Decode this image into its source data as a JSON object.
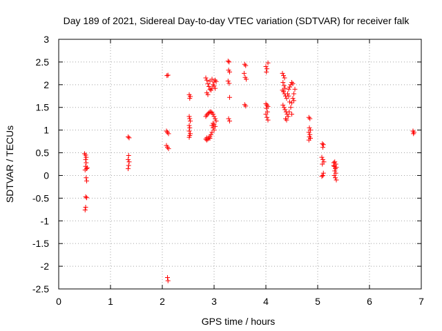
{
  "chart_data": {
    "type": "scatter",
    "title": "Day 189 of 2021, Sidereal Day-to-day VTEC variation (SDTVAR) for receiver falk",
    "xlabel": "GPS time / hours",
    "ylabel": "SDTVAR / TECUs",
    "xlim": [
      0,
      7
    ],
    "ylim": [
      -2.5,
      3
    ],
    "xticks": [
      "0",
      "1",
      "2",
      "3",
      "4",
      "5",
      "6",
      "7"
    ],
    "yticks": [
      "-2.5",
      "-2",
      "-1.5",
      "-1",
      "-0.5",
      "0",
      "0.5",
      "1",
      "1.5",
      "2",
      "2.5",
      "3"
    ],
    "grid": true,
    "marker": "plus",
    "color": "#ff0000",
    "series": [
      {
        "points": [
          [
            0.5,
            0.48
          ],
          [
            0.52,
            0.45
          ],
          [
            0.53,
            0.4
          ],
          [
            0.52,
            0.35
          ],
          [
            0.53,
            0.28
          ],
          [
            0.52,
            0.2
          ],
          [
            0.54,
            0.15
          ],
          [
            0.51,
            0.12
          ],
          [
            0.55,
            0.17
          ],
          [
            0.53,
            -0.05
          ],
          [
            0.54,
            -0.12
          ],
          [
            0.52,
            -0.47
          ],
          [
            0.54,
            -0.49
          ],
          [
            0.52,
            -0.7
          ],
          [
            0.51,
            -0.76
          ],
          [
            1.34,
            0.85
          ],
          [
            1.36,
            0.83
          ],
          [
            1.35,
            0.44
          ],
          [
            1.34,
            0.35
          ],
          [
            1.36,
            0.3
          ],
          [
            1.35,
            0.22
          ],
          [
            1.34,
            0.15
          ],
          [
            2.09,
            2.2
          ],
          [
            2.11,
            2.21
          ],
          [
            2.08,
            0.98
          ],
          [
            2.1,
            0.95
          ],
          [
            2.12,
            0.92
          ],
          [
            2.08,
            0.66
          ],
          [
            2.1,
            0.62
          ],
          [
            2.12,
            0.59
          ],
          [
            2.1,
            -2.25
          ],
          [
            2.11,
            -2.32
          ],
          [
            2.52,
            1.78
          ],
          [
            2.54,
            1.74
          ],
          [
            2.53,
            1.7
          ],
          [
            2.52,
            1.3
          ],
          [
            2.53,
            1.25
          ],
          [
            2.54,
            1.2
          ],
          [
            2.52,
            1.1
          ],
          [
            2.53,
            1.05
          ],
          [
            2.52,
            0.98
          ],
          [
            2.54,
            0.92
          ],
          [
            2.53,
            0.88
          ],
          [
            2.52,
            0.84
          ],
          [
            2.84,
            2.15
          ],
          [
            2.86,
            2.1
          ],
          [
            2.88,
            2.02
          ],
          [
            2.9,
            1.96
          ],
          [
            2.92,
            1.9
          ],
          [
            2.94,
            1.88
          ],
          [
            2.96,
            1.92
          ],
          [
            2.98,
            2.0
          ],
          [
            3.0,
            2.06
          ],
          [
            3.02,
            2.1
          ],
          [
            3.04,
            2.07
          ],
          [
            2.86,
            1.82
          ],
          [
            2.88,
            1.78
          ],
          [
            2.92,
            2.08
          ],
          [
            2.96,
            2.12
          ],
          [
            3.0,
            1.97
          ],
          [
            3.02,
            1.92
          ],
          [
            2.84,
            1.3
          ],
          [
            2.86,
            1.33
          ],
          [
            2.88,
            1.36
          ],
          [
            2.9,
            1.38
          ],
          [
            2.92,
            1.4
          ],
          [
            2.94,
            1.4
          ],
          [
            2.96,
            1.38
          ],
          [
            2.98,
            1.35
          ],
          [
            3.0,
            1.3
          ],
          [
            3.02,
            1.25
          ],
          [
            3.04,
            1.2
          ],
          [
            2.98,
            1.15
          ],
          [
            2.96,
            1.1
          ],
          [
            2.98,
            1.05
          ],
          [
            3.0,
            1.0
          ],
          [
            2.96,
            0.95
          ],
          [
            2.94,
            0.9
          ],
          [
            2.92,
            0.86
          ],
          [
            2.9,
            0.83
          ],
          [
            2.88,
            0.8
          ],
          [
            2.86,
            0.78
          ],
          [
            2.84,
            0.8
          ],
          [
            2.86,
            0.83
          ],
          [
            2.92,
            0.82
          ],
          [
            3.0,
            1.12
          ],
          [
            3.02,
            1.08
          ],
          [
            3.27,
            2.52
          ],
          [
            3.29,
            2.5
          ],
          [
            3.28,
            2.32
          ],
          [
            3.3,
            2.28
          ],
          [
            3.27,
            2.08
          ],
          [
            3.29,
            2.03
          ],
          [
            3.3,
            1.72
          ],
          [
            3.28,
            1.25
          ],
          [
            3.3,
            1.2
          ],
          [
            3.59,
            2.45
          ],
          [
            3.61,
            2.42
          ],
          [
            3.58,
            2.25
          ],
          [
            3.6,
            2.16
          ],
          [
            3.62,
            2.12
          ],
          [
            3.59,
            1.56
          ],
          [
            3.61,
            1.53
          ],
          [
            4.0,
            2.4
          ],
          [
            4.02,
            2.35
          ],
          [
            4.04,
            2.48
          ],
          [
            4.01,
            2.28
          ],
          [
            4.0,
            1.58
          ],
          [
            4.02,
            1.55
          ],
          [
            4.04,
            1.52
          ],
          [
            4.01,
            1.48
          ],
          [
            4.03,
            1.4
          ],
          [
            4.0,
            1.35
          ],
          [
            4.02,
            1.28
          ],
          [
            4.04,
            1.22
          ],
          [
            4.32,
            2.25
          ],
          [
            4.34,
            2.2
          ],
          [
            4.36,
            2.15
          ],
          [
            4.33,
            2.05
          ],
          [
            4.35,
            1.98
          ],
          [
            4.37,
            1.92
          ],
          [
            4.32,
            1.88
          ],
          [
            4.34,
            1.85
          ],
          [
            4.36,
            1.8
          ],
          [
            4.38,
            1.75
          ],
          [
            4.4,
            1.7
          ],
          [
            4.42,
            1.8
          ],
          [
            4.44,
            1.9
          ],
          [
            4.46,
            1.95
          ],
          [
            4.48,
            2.0
          ],
          [
            4.5,
            2.05
          ],
          [
            4.52,
            2.02
          ],
          [
            4.33,
            1.55
          ],
          [
            4.35,
            1.5
          ],
          [
            4.37,
            1.45
          ],
          [
            4.39,
            1.4
          ],
          [
            4.41,
            1.35
          ],
          [
            4.43,
            1.3
          ],
          [
            4.38,
            1.25
          ],
          [
            4.4,
            1.22
          ],
          [
            4.45,
            1.4
          ],
          [
            4.48,
            1.5
          ],
          [
            4.5,
            1.6
          ],
          [
            4.52,
            1.7
          ],
          [
            4.54,
            1.8
          ],
          [
            4.56,
            1.9
          ],
          [
            4.54,
            1.65
          ],
          [
            4.5,
            1.35
          ],
          [
            4.46,
            1.62
          ],
          [
            4.44,
            1.75
          ],
          [
            4.83,
            1.28
          ],
          [
            4.85,
            1.25
          ],
          [
            4.84,
            1.05
          ],
          [
            4.86,
            1.0
          ],
          [
            4.83,
            0.95
          ],
          [
            4.85,
            0.9
          ],
          [
            4.84,
            0.85
          ],
          [
            4.86,
            0.82
          ],
          [
            4.83,
            0.78
          ],
          [
            5.09,
            0.7
          ],
          [
            5.11,
            0.68
          ],
          [
            5.1,
            0.62
          ],
          [
            5.08,
            0.4
          ],
          [
            5.1,
            0.35
          ],
          [
            5.12,
            0.3
          ],
          [
            5.09,
            0.25
          ],
          [
            5.11,
            0.05
          ],
          [
            5.1,
            0.0
          ],
          [
            5.08,
            -0.02
          ],
          [
            5.31,
            0.28
          ],
          [
            5.33,
            0.3
          ],
          [
            5.35,
            0.25
          ],
          [
            5.32,
            0.2
          ],
          [
            5.34,
            0.15
          ],
          [
            5.33,
            0.1
          ],
          [
            5.35,
            0.05
          ],
          [
            5.32,
            0.0
          ],
          [
            5.34,
            -0.05
          ],
          [
            5.36,
            -0.1
          ],
          [
            5.31,
            0.22
          ],
          [
            5.36,
            0.18
          ],
          [
            6.84,
            0.98
          ],
          [
            6.86,
            0.95
          ],
          [
            6.85,
            0.92
          ]
        ]
      }
    ]
  }
}
